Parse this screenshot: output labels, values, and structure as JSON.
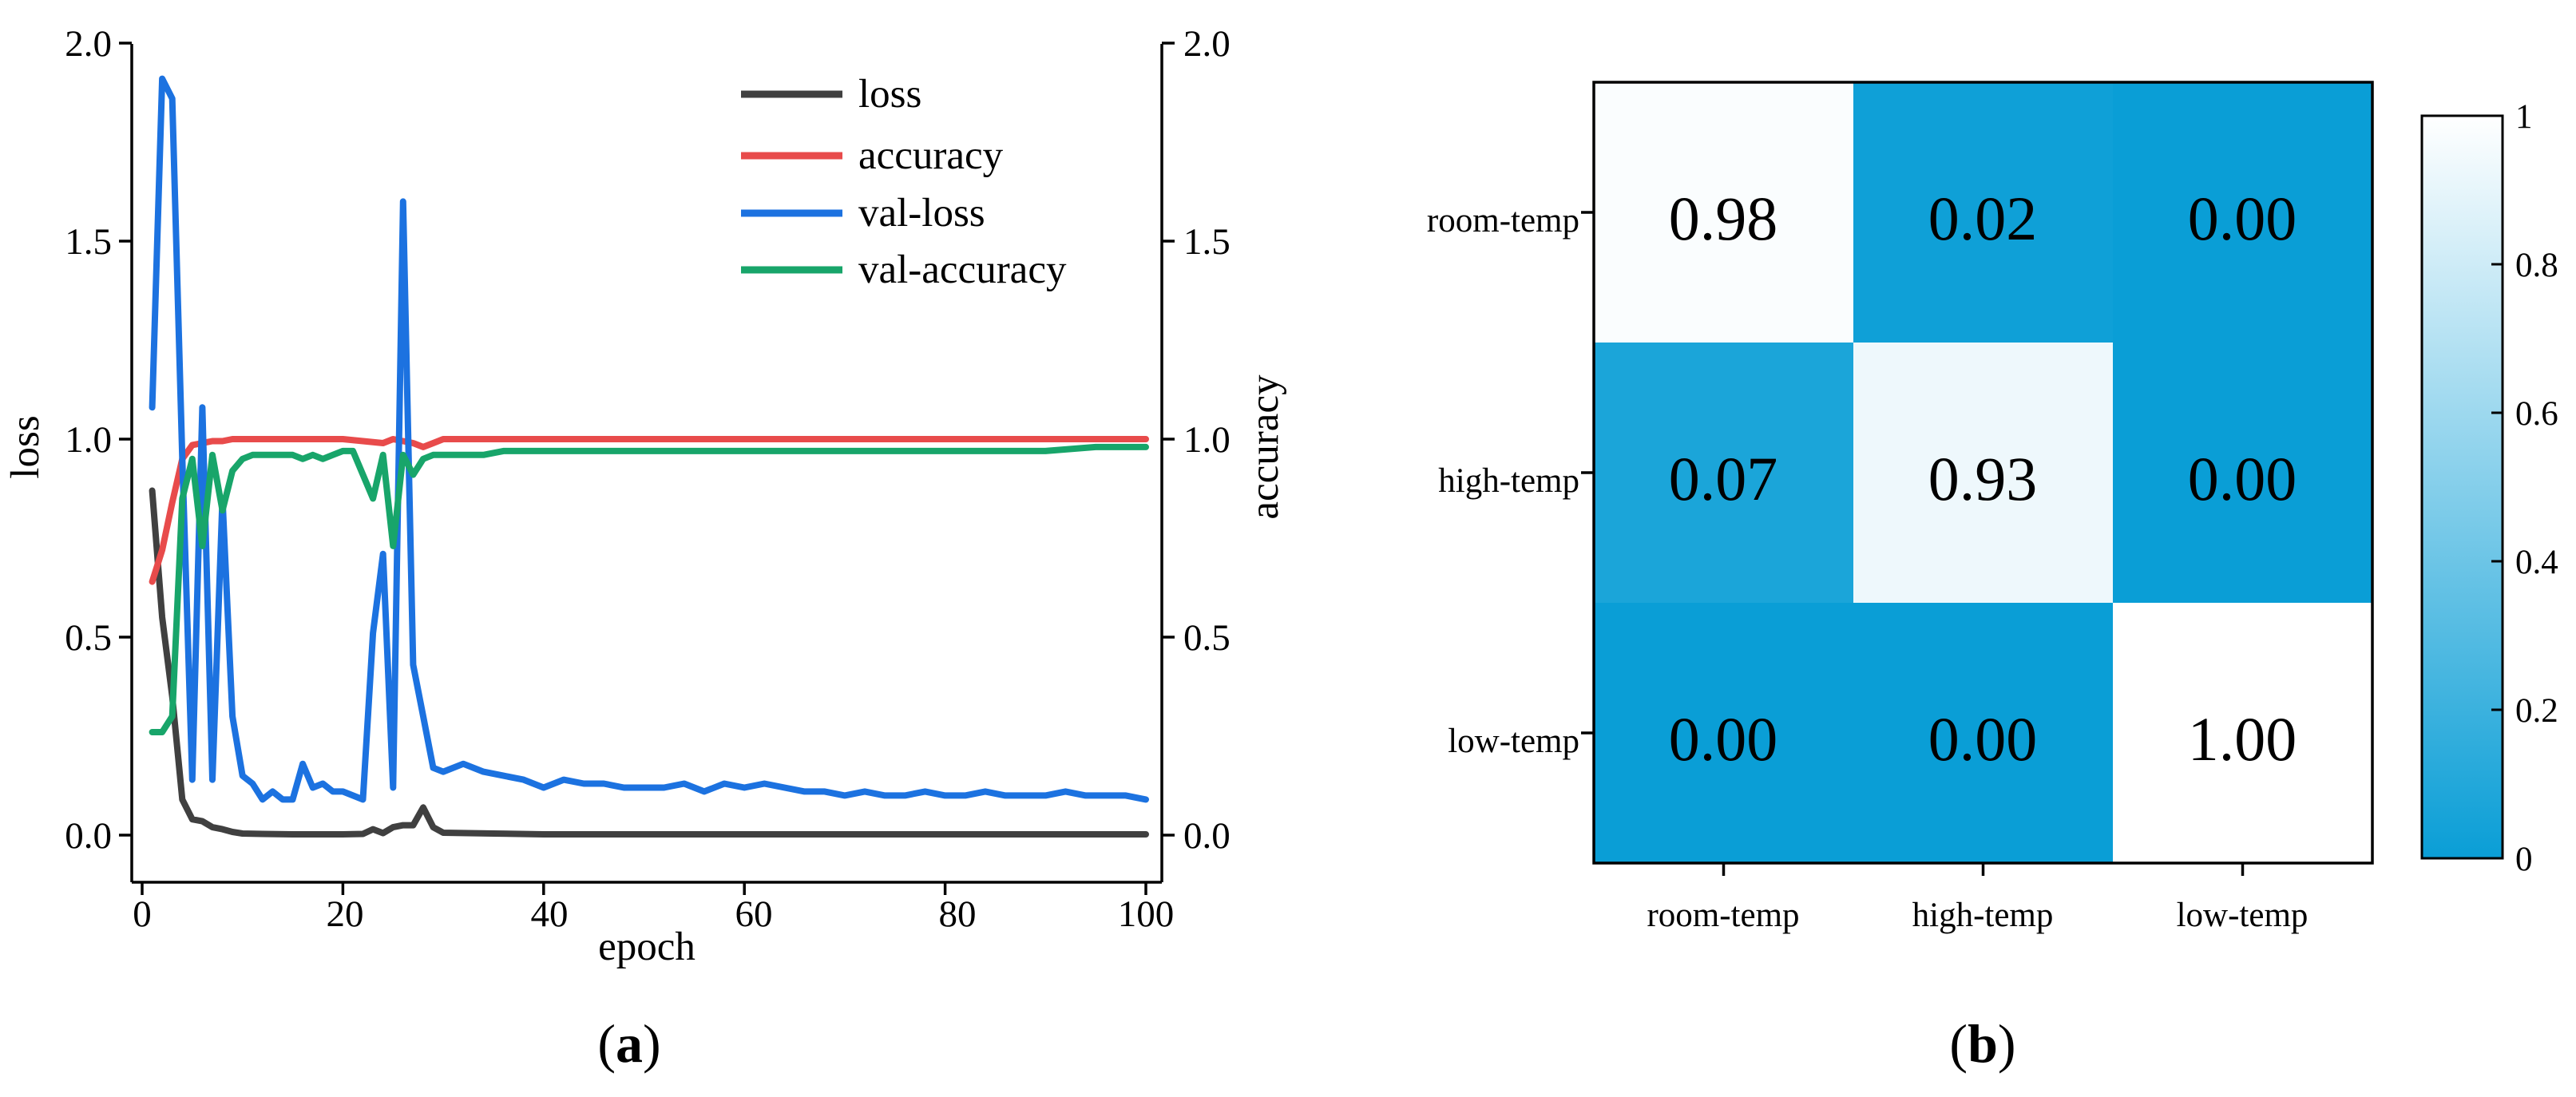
{
  "chart_data": [
    {
      "type": "line",
      "panel_label": "a",
      "xlabel": "epoch",
      "ylabel_left": "loss",
      "ylabel_right": "accuracy",
      "xlim": [
        0,
        100
      ],
      "ylim_left": [
        0.0,
        2.0
      ],
      "ylim_right": [
        0.0,
        2.0
      ],
      "xticks": [
        "0",
        "20",
        "40",
        "60",
        "80",
        "100"
      ],
      "yticks_left": [
        "0.0",
        "0.5",
        "1.0",
        "1.5",
        "2.0"
      ],
      "yticks_right": [
        "0.0",
        "0.5",
        "1.0",
        "1.5",
        "2.0"
      ],
      "legend_position": "top-right",
      "grid": false,
      "series": [
        {
          "name": "loss",
          "axis": "left",
          "color": "#404040",
          "x": [
            1,
            2,
            3,
            4,
            5,
            6,
            7,
            8,
            9,
            10,
            12,
            15,
            20,
            22,
            23,
            24,
            25,
            26,
            27,
            28,
            29,
            30,
            35,
            40,
            50,
            60,
            70,
            80,
            90,
            100
          ],
          "y": [
            0.87,
            0.55,
            0.35,
            0.09,
            0.04,
            0.035,
            0.02,
            0.015,
            0.008,
            0.004,
            0.003,
            0.002,
            0.002,
            0.003,
            0.015,
            0.005,
            0.02,
            0.025,
            0.025,
            0.07,
            0.02,
            0.006,
            0.004,
            0.002,
            0.002,
            0.002,
            0.002,
            0.002,
            0.002,
            0.002
          ]
        },
        {
          "name": "accuracy",
          "axis": "right",
          "color": "#e84b4b",
          "x": [
            1,
            2,
            3,
            4,
            5,
            6,
            7,
            8,
            9,
            10,
            15,
            20,
            24,
            25,
            26,
            27,
            28,
            29,
            30,
            35,
            40,
            50,
            60,
            70,
            80,
            90,
            100
          ],
          "y": [
            0.64,
            0.72,
            0.84,
            0.95,
            0.985,
            0.99,
            0.995,
            0.995,
            1.0,
            1.0,
            1.0,
            1.0,
            0.99,
            1.0,
            0.995,
            0.99,
            0.98,
            0.99,
            1.0,
            1.0,
            1.0,
            1.0,
            1.0,
            1.0,
            1.0,
            1.0,
            1.0
          ]
        },
        {
          "name": "val-loss",
          "axis": "left",
          "color": "#1c72e0",
          "x": [
            1,
            2,
            3,
            4,
            5,
            6,
            7,
            8,
            9,
            10,
            11,
            12,
            13,
            14,
            15,
            16,
            17,
            18,
            19,
            20,
            21,
            22,
            23,
            24,
            25,
            26,
            27,
            28,
            29,
            30,
            32,
            34,
            36,
            38,
            40,
            42,
            44,
            46,
            48,
            50,
            52,
            54,
            56,
            58,
            60,
            62,
            64,
            66,
            68,
            70,
            72,
            74,
            76,
            78,
            80,
            82,
            84,
            86,
            88,
            90,
            92,
            94,
            96,
            98,
            100
          ],
          "y": [
            1.08,
            1.91,
            1.86,
            0.95,
            0.14,
            1.08,
            0.14,
            0.85,
            0.3,
            0.15,
            0.13,
            0.09,
            0.11,
            0.09,
            0.09,
            0.18,
            0.12,
            0.13,
            0.11,
            0.11,
            0.1,
            0.09,
            0.51,
            0.71,
            0.12,
            1.6,
            0.43,
            0.3,
            0.17,
            0.16,
            0.18,
            0.16,
            0.15,
            0.14,
            0.12,
            0.14,
            0.13,
            0.13,
            0.12,
            0.12,
            0.12,
            0.13,
            0.11,
            0.13,
            0.12,
            0.13,
            0.12,
            0.11,
            0.11,
            0.1,
            0.11,
            0.1,
            0.1,
            0.11,
            0.1,
            0.1,
            0.11,
            0.1,
            0.1,
            0.1,
            0.11,
            0.1,
            0.1,
            0.1,
            0.09
          ]
        },
        {
          "name": "val-accuracy",
          "axis": "right",
          "color": "#18a56a",
          "x": [
            1,
            2,
            3,
            4,
            5,
            6,
            7,
            8,
            9,
            10,
            11,
            12,
            13,
            14,
            15,
            16,
            17,
            18,
            19,
            20,
            21,
            22,
            23,
            24,
            25,
            26,
            27,
            28,
            29,
            30,
            32,
            34,
            36,
            38,
            40,
            45,
            50,
            55,
            60,
            65,
            70,
            75,
            80,
            85,
            90,
            95,
            100
          ],
          "y": [
            0.26,
            0.26,
            0.3,
            0.85,
            0.95,
            0.73,
            0.96,
            0.82,
            0.92,
            0.95,
            0.96,
            0.96,
            0.96,
            0.96,
            0.96,
            0.95,
            0.96,
            0.95,
            0.96,
            0.97,
            0.97,
            0.91,
            0.85,
            0.96,
            0.73,
            0.96,
            0.91,
            0.95,
            0.96,
            0.96,
            0.96,
            0.96,
            0.97,
            0.97,
            0.97,
            0.97,
            0.97,
            0.97,
            0.97,
            0.97,
            0.97,
            0.97,
            0.97,
            0.97,
            0.97,
            0.98,
            0.98
          ]
        }
      ]
    },
    {
      "type": "heatmap",
      "panel_label": "b",
      "rows": [
        "room-temp",
        "high-temp",
        "low-temp"
      ],
      "columns": [
        "room-temp",
        "high-temp",
        "low-temp"
      ],
      "values": [
        [
          0.98,
          0.02,
          0.0
        ],
        [
          0.07,
          0.93,
          0.0
        ],
        [
          0.0,
          0.0,
          1.0
        ]
      ],
      "cell_labels": [
        [
          "0.98",
          "0.02",
          "0.00"
        ],
        [
          "0.07",
          "0.93",
          "0.00"
        ],
        [
          "0.00",
          "0.00",
          "1.00"
        ]
      ],
      "colorbar": {
        "min": 0,
        "max": 1,
        "ticks": [
          "0",
          "0.2",
          "0.4",
          "0.6",
          "0.8",
          "1"
        ]
      },
      "colormap": {
        "low": "#0a9ed6",
        "high": "#ffffff"
      }
    }
  ]
}
